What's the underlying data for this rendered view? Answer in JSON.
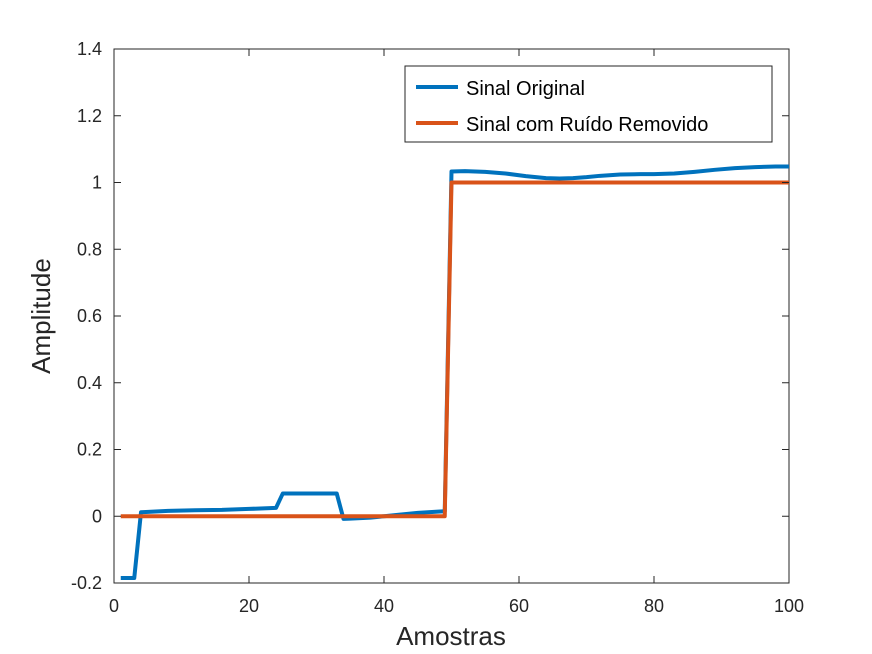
{
  "chart_data": {
    "type": "line",
    "xlabel": "Amostras",
    "ylabel": "Amplitude",
    "xlim": [
      0,
      100
    ],
    "ylim": [
      -0.2,
      1.4
    ],
    "xticks": [
      0,
      20,
      40,
      60,
      80,
      100
    ],
    "xtick_labels": [
      "0",
      "20",
      "40",
      "60",
      "80",
      "100"
    ],
    "yticks": [
      -0.2,
      0,
      0.2,
      0.4,
      0.6,
      0.8,
      1,
      1.2,
      1.4
    ],
    "ytick_labels": [
      "-0.2",
      "0",
      "0.2",
      "0.4",
      "0.6",
      "0.8",
      "1",
      "1.2",
      "1.4"
    ],
    "grid": false,
    "legend_position": "top-right",
    "series": [
      {
        "name": "Sinal Original",
        "color": "#0072BD",
        "x": [
          1,
          2,
          3,
          4,
          8,
          12,
          16,
          20,
          24,
          25,
          26,
          28,
          30,
          32,
          33,
          34,
          35,
          38,
          40,
          42,
          45,
          48,
          49,
          50,
          52,
          55,
          58,
          61,
          64,
          66,
          68,
          70,
          72,
          75,
          78,
          80,
          83,
          86,
          89,
          92,
          95,
          98,
          100
        ],
        "y": [
          -0.185,
          -0.185,
          -0.185,
          0.012,
          0.016,
          0.018,
          0.019,
          0.022,
          0.025,
          0.068,
          0.068,
          0.068,
          0.068,
          0.068,
          0.068,
          -0.008,
          -0.007,
          -0.004,
          0.0,
          0.004,
          0.01,
          0.014,
          0.015,
          1.033,
          1.034,
          1.032,
          1.027,
          1.019,
          1.013,
          1.012,
          1.013,
          1.016,
          1.02,
          1.024,
          1.025,
          1.025,
          1.027,
          1.032,
          1.038,
          1.043,
          1.046,
          1.048,
          1.048
        ]
      },
      {
        "name": "Sinal com Ruído Removido",
        "color": "#D95319",
        "x": [
          1,
          49,
          50,
          100
        ],
        "y": [
          0,
          0,
          1,
          1
        ]
      }
    ]
  }
}
